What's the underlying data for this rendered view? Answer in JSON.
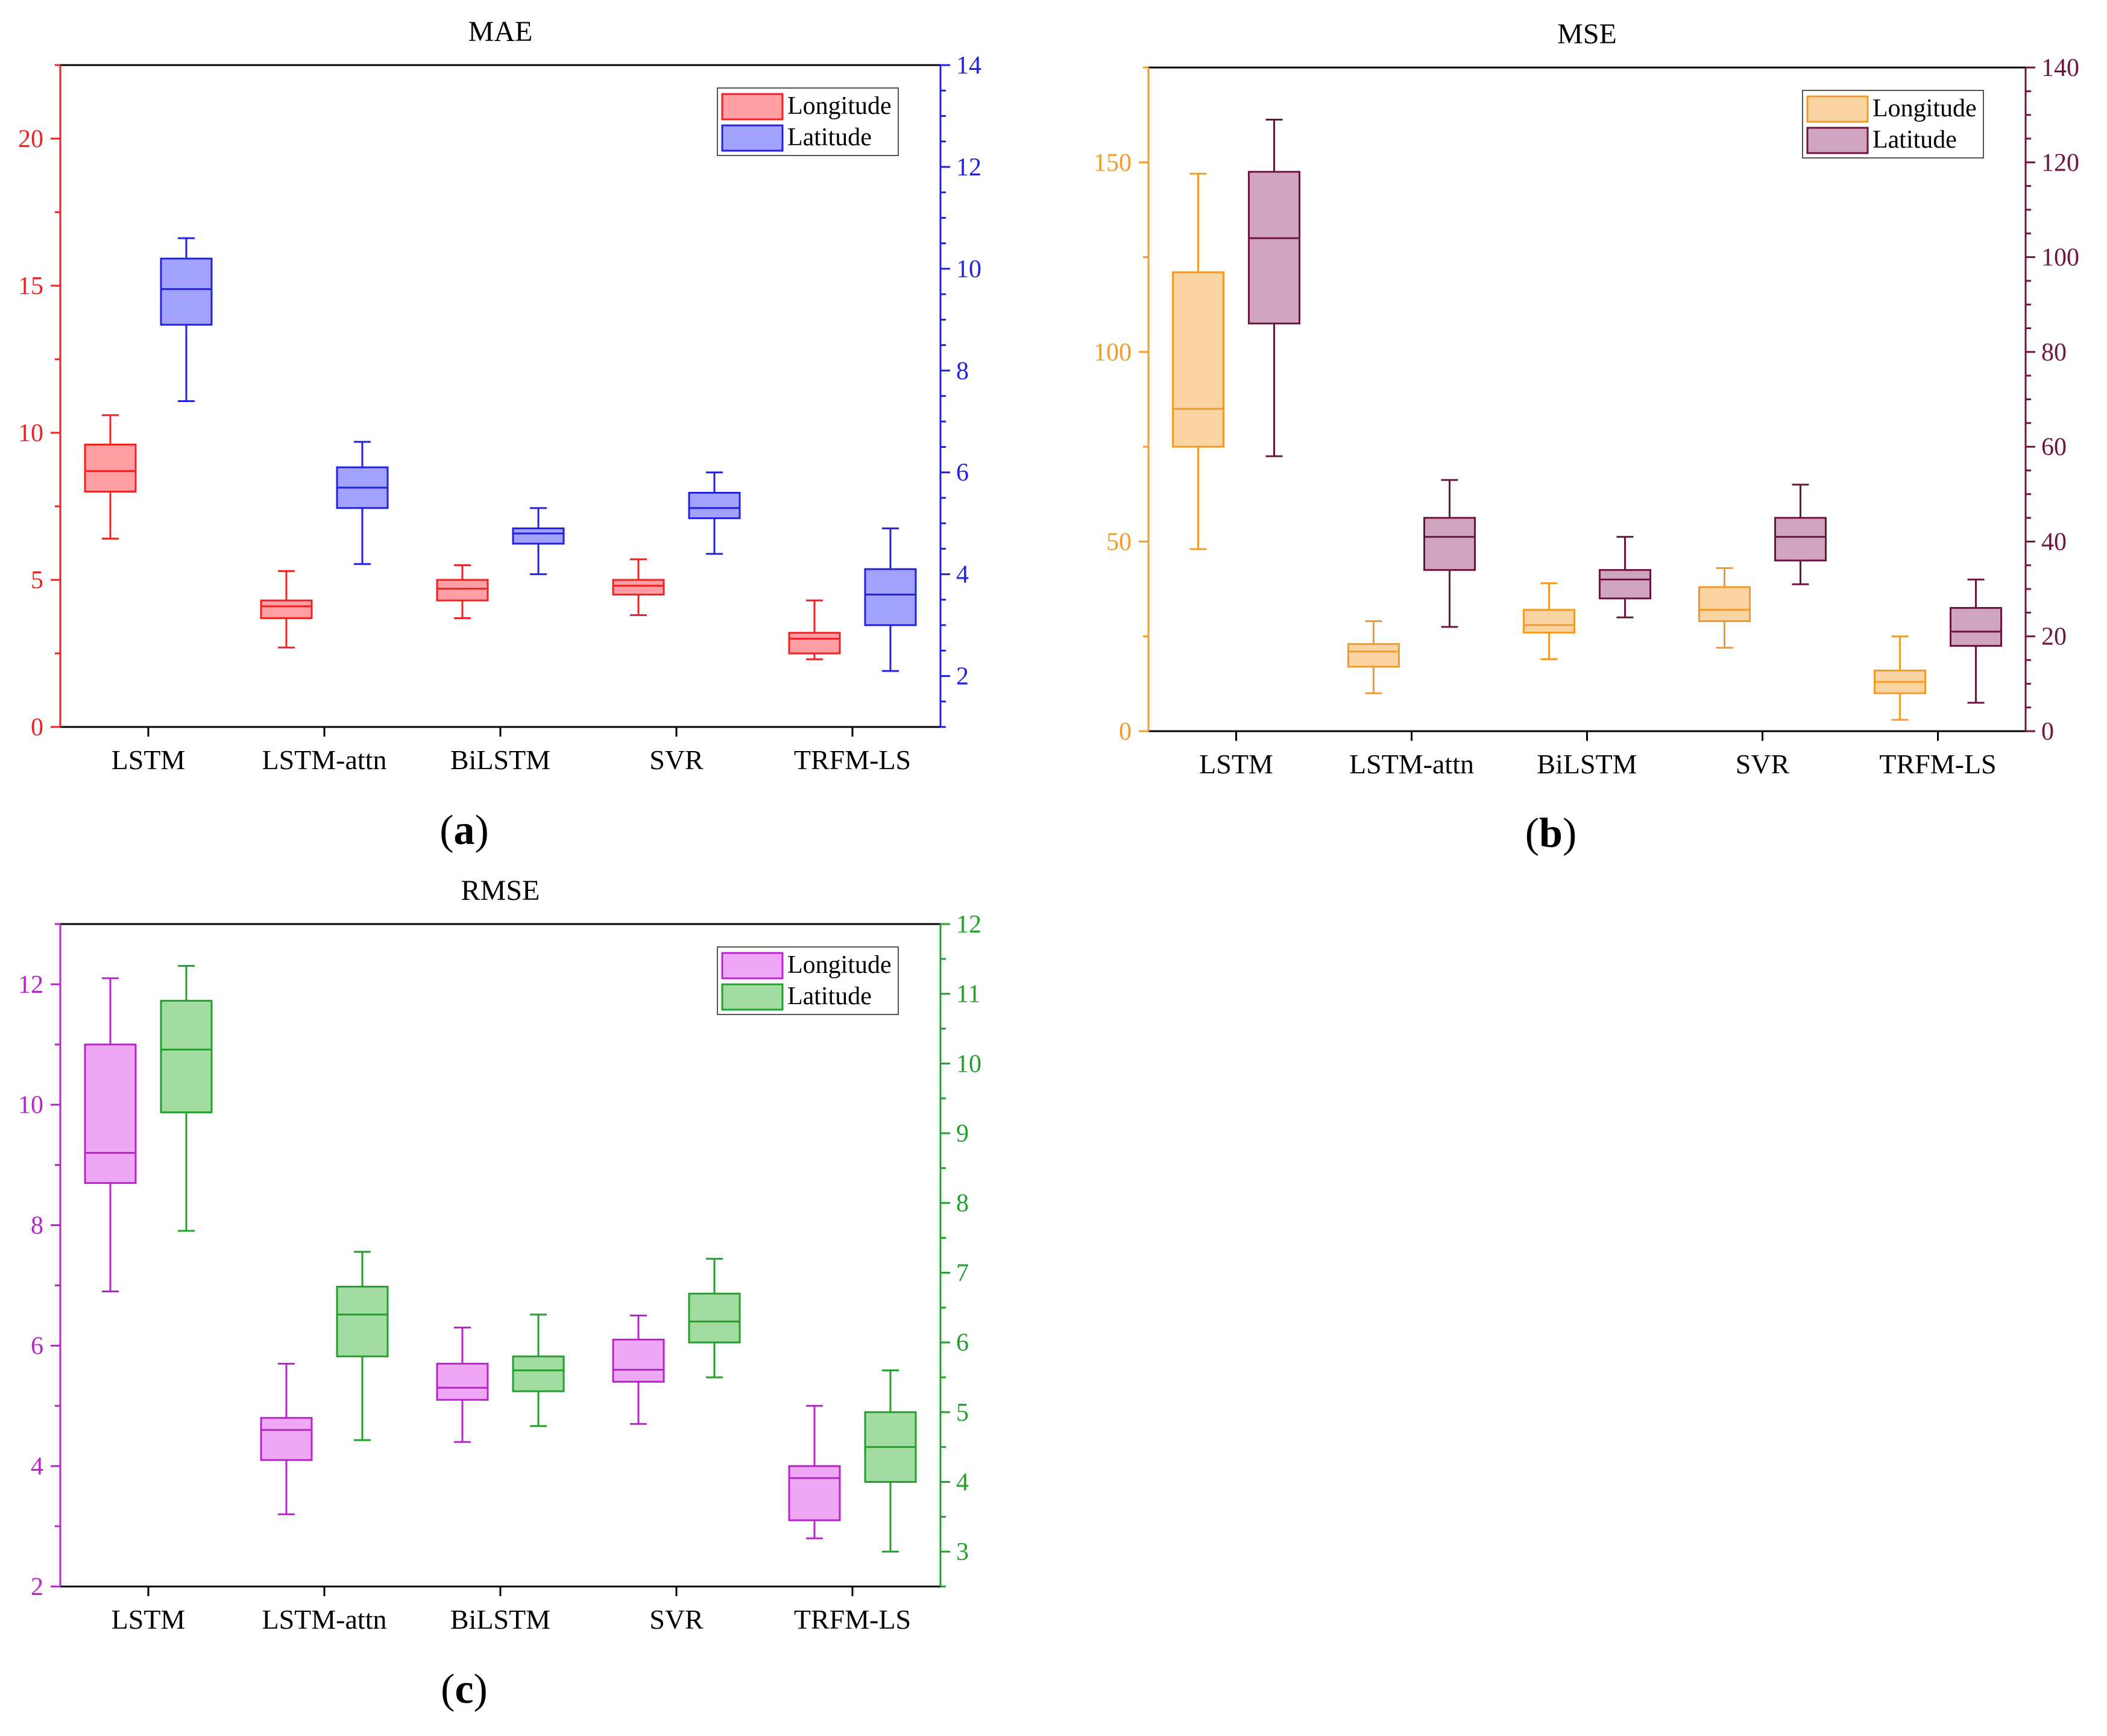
{
  "chart_data": [
    {
      "type": "box",
      "title": "MAE",
      "caption": "a",
      "categories": [
        "LSTM",
        "LSTM-attn",
        "BiLSTM",
        "SVR",
        "TRFM-LS"
      ],
      "y_left": {
        "lim": [
          0,
          22.5
        ],
        "ticks": [
          0,
          5,
          10,
          15,
          20
        ],
        "color": "#ee2222"
      },
      "y_right": {
        "lim": [
          1,
          14
        ],
        "ticks": [
          2,
          4,
          6,
          8,
          10,
          12,
          14
        ],
        "color": "#2222dd"
      },
      "series": [
        {
          "name": "Longitude",
          "axis": "left",
          "stroke": "#ee2222",
          "fill": "#ff9fa3",
          "boxes": [
            {
              "whislo": 6.4,
              "q1": 8.0,
              "med": 8.7,
              "q3": 9.6,
              "whishi": 10.6
            },
            {
              "whislo": 2.7,
              "q1": 3.7,
              "med": 4.1,
              "q3": 4.3,
              "whishi": 5.3
            },
            {
              "whislo": 3.7,
              "q1": 4.3,
              "med": 4.7,
              "q3": 5.0,
              "whishi": 5.5
            },
            {
              "whislo": 3.8,
              "q1": 4.5,
              "med": 4.8,
              "q3": 5.0,
              "whishi": 5.7
            },
            {
              "whislo": 2.3,
              "q1": 2.5,
              "med": 3.0,
              "q3": 3.2,
              "whishi": 4.3
            }
          ]
        },
        {
          "name": "Latitude",
          "axis": "right",
          "stroke": "#2222dd",
          "fill": "#a3a3ff",
          "boxes": [
            {
              "whislo": 7.4,
              "q1": 8.9,
              "med": 9.6,
              "q3": 10.2,
              "whishi": 10.6
            },
            {
              "whislo": 4.2,
              "q1": 5.3,
              "med": 5.7,
              "q3": 6.1,
              "whishi": 6.6
            },
            {
              "whislo": 4.0,
              "q1": 4.6,
              "med": 4.8,
              "q3": 4.9,
              "whishi": 5.3
            },
            {
              "whislo": 4.4,
              "q1": 5.1,
              "med": 5.3,
              "q3": 5.6,
              "whishi": 6.0
            },
            {
              "whislo": 2.1,
              "q1": 3.0,
              "med": 3.6,
              "q3": 4.1,
              "whishi": 4.9
            }
          ]
        }
      ]
    },
    {
      "type": "box",
      "title": "MSE",
      "caption": "b",
      "categories": [
        "LSTM",
        "LSTM-attn",
        "BiLSTM",
        "SVR",
        "TRFM-LS"
      ],
      "y_left": {
        "lim": [
          0,
          175
        ],
        "ticks": [
          0,
          50,
          100,
          150
        ],
        "color": "#f39b2a"
      },
      "y_right": {
        "lim": [
          0,
          140
        ],
        "ticks": [
          0,
          20,
          40,
          60,
          80,
          100,
          120,
          140
        ],
        "color": "#6e1440"
      },
      "series": [
        {
          "name": "Longitude",
          "axis": "left",
          "stroke": "#f39b2a",
          "fill": "#fbd4a4",
          "boxes": [
            {
              "whislo": 48,
              "q1": 75,
              "med": 85,
              "q3": 121,
              "whishi": 147
            },
            {
              "whislo": 10,
              "q1": 17,
              "med": 21,
              "q3": 23,
              "whishi": 29
            },
            {
              "whislo": 19,
              "q1": 26,
              "med": 28,
              "q3": 32,
              "whishi": 39
            },
            {
              "whislo": 22,
              "q1": 29,
              "med": 32,
              "q3": 38,
              "whishi": 43
            },
            {
              "whislo": 3,
              "q1": 10,
              "med": 13,
              "q3": 16,
              "whishi": 25
            }
          ]
        },
        {
          "name": "Latitude",
          "axis": "right",
          "stroke": "#6e1440",
          "fill": "#cfa4be",
          "boxes": [
            {
              "whislo": 58,
              "q1": 86,
              "med": 104,
              "q3": 118,
              "whishi": 129
            },
            {
              "whislo": 22,
              "q1": 34,
              "med": 41,
              "q3": 45,
              "whishi": 53
            },
            {
              "whislo": 24,
              "q1": 28,
              "med": 32,
              "q3": 34,
              "whishi": 41
            },
            {
              "whislo": 31,
              "q1": 36,
              "med": 41,
              "q3": 45,
              "whishi": 52
            },
            {
              "whislo": 6,
              "q1": 18,
              "med": 21,
              "q3": 26,
              "whishi": 32
            }
          ]
        }
      ]
    },
    {
      "type": "box",
      "title": "RMSE",
      "caption": "c",
      "categories": [
        "LSTM",
        "LSTM-attn",
        "BiLSTM",
        "SVR",
        "TRFM-LS"
      ],
      "y_left": {
        "lim": [
          2,
          13
        ],
        "ticks": [
          2,
          4,
          6,
          8,
          10,
          12
        ],
        "color": "#bb22cc"
      },
      "y_right": {
        "lim": [
          2.5,
          12
        ],
        "ticks": [
          3,
          4,
          5,
          6,
          7,
          8,
          9,
          10,
          11,
          12
        ],
        "color": "#22a02a"
      },
      "series": [
        {
          "name": "Longitude",
          "axis": "left",
          "stroke": "#bb22cc",
          "fill": "#efa8f5",
          "boxes": [
            {
              "whislo": 6.9,
              "q1": 8.7,
              "med": 9.2,
              "q3": 11.0,
              "whishi": 12.1
            },
            {
              "whislo": 3.2,
              "q1": 4.1,
              "med": 4.6,
              "q3": 4.8,
              "whishi": 5.7
            },
            {
              "whislo": 4.4,
              "q1": 5.1,
              "med": 5.3,
              "q3": 5.7,
              "whishi": 6.3
            },
            {
              "whislo": 4.7,
              "q1": 5.4,
              "med": 5.6,
              "q3": 6.1,
              "whishi": 6.5
            },
            {
              "whislo": 2.8,
              "q1": 3.1,
              "med": 3.8,
              "q3": 4.0,
              "whishi": 5.0
            }
          ]
        },
        {
          "name": "Latitude",
          "axis": "right",
          "stroke": "#22a02a",
          "fill": "#a3dca3",
          "boxes": [
            {
              "whislo": 7.6,
              "q1": 9.3,
              "med": 10.2,
              "q3": 10.9,
              "whishi": 11.4
            },
            {
              "whislo": 4.6,
              "q1": 5.8,
              "med": 6.4,
              "q3": 6.8,
              "whishi": 7.3
            },
            {
              "whislo": 4.8,
              "q1": 5.3,
              "med": 5.6,
              "q3": 5.8,
              "whishi": 6.4
            },
            {
              "whislo": 5.5,
              "q1": 6.0,
              "med": 6.3,
              "q3": 6.7,
              "whishi": 7.2
            },
            {
              "whislo": 3.0,
              "q1": 4.0,
              "med": 4.5,
              "q3": 5.0,
              "whishi": 5.6
            }
          ]
        }
      ]
    }
  ]
}
